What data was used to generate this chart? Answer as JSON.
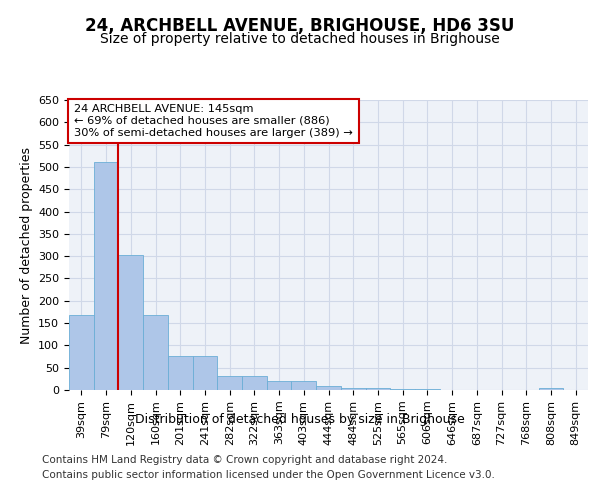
{
  "title": "24, ARCHBELL AVENUE, BRIGHOUSE, HD6 3SU",
  "subtitle": "Size of property relative to detached houses in Brighouse",
  "xlabel": "Distribution of detached houses by size in Brighouse",
  "ylabel": "Number of detached properties",
  "bin_labels": [
    "39sqm",
    "79sqm",
    "120sqm",
    "160sqm",
    "201sqm",
    "241sqm",
    "282sqm",
    "322sqm",
    "363sqm",
    "403sqm",
    "444sqm",
    "484sqm",
    "525sqm",
    "565sqm",
    "606sqm",
    "646sqm",
    "687sqm",
    "727sqm",
    "768sqm",
    "808sqm",
    "849sqm"
  ],
  "bar_heights": [
    168,
    510,
    302,
    168,
    76,
    76,
    32,
    32,
    20,
    20,
    8,
    5,
    5,
    2,
    2,
    0,
    0,
    0,
    0,
    5,
    0
  ],
  "bar_color": "#aec6e8",
  "bar_edge_color": "#6baed6",
  "vline_color": "#cc0000",
  "vline_pos": 1.5,
  "annotation_box_text": "24 ARCHBELL AVENUE: 145sqm\n← 69% of detached houses are smaller (886)\n30% of semi-detached houses are larger (389) →",
  "ylim": [
    0,
    650
  ],
  "yticks": [
    0,
    50,
    100,
    150,
    200,
    250,
    300,
    350,
    400,
    450,
    500,
    550,
    600,
    650
  ],
  "grid_color": "#d0d8e8",
  "background_color": "#eef2f8",
  "footer_line1": "Contains HM Land Registry data © Crown copyright and database right 2024.",
  "footer_line2": "Contains public sector information licensed under the Open Government Licence v3.0.",
  "title_fontsize": 12,
  "subtitle_fontsize": 10,
  "tick_fontsize": 8,
  "ylabel_fontsize": 9,
  "footer_fontsize": 7.5,
  "annotation_fontsize": 8.2
}
